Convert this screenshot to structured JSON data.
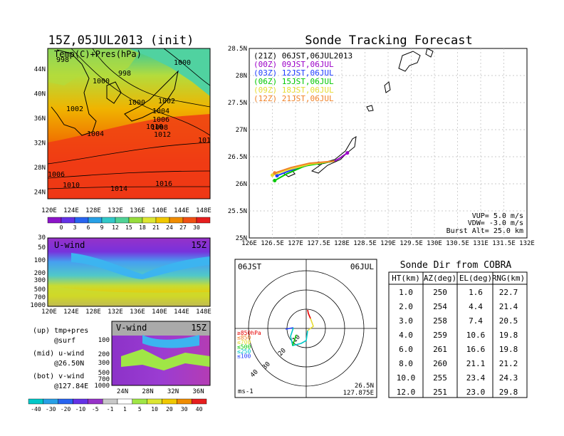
{
  "left_map": {
    "title": "15Z,05JUL2013 (init)",
    "label": "Temp(C)+Pres(hPa)",
    "lat_ticks": [
      "44N",
      "40N",
      "36N",
      "32N",
      "28N",
      "24N"
    ],
    "lon_ticks": [
      "120E",
      "124E",
      "128E",
      "132E",
      "136E",
      "140E",
      "144E",
      "148E"
    ],
    "isobars": [
      "998",
      "998",
      "1000",
      "1000",
      "1000",
      "1002",
      "1002",
      "1004",
      "1004",
      "1006",
      "1008",
      "1010",
      "1012",
      "101",
      "1006",
      "1010",
      "1014",
      "1016"
    ],
    "colorbar": [
      "0",
      "3",
      "6",
      "9",
      "12",
      "15",
      "18",
      "21",
      "24",
      "27",
      "30"
    ]
  },
  "uwind": {
    "label": "U-wind",
    "time": "15Z",
    "p_ticks": [
      "30",
      "50",
      "100",
      "200",
      "300",
      "500",
      "700",
      "1000"
    ],
    "lon_ticks": [
      "120E",
      "124E",
      "128E",
      "132E",
      "136E",
      "140E",
      "144E",
      "148E"
    ]
  },
  "vwind": {
    "label": "V-wind",
    "time": "15Z",
    "p_ticks": [
      "100",
      "200",
      "300",
      "500",
      "700",
      "1000"
    ],
    "lat_ticks": [
      "24N",
      "28N",
      "32N",
      "36N"
    ]
  },
  "legend_notes": {
    "up": "(up) tmp+pres",
    "up2": "@surf",
    "mid": "(mid) u-wind",
    "mid2": "@26.50N",
    "bot": "(bot) v-wind",
    "bot2": "@127.84E"
  },
  "wind_colorbar": [
    "-40",
    "-30",
    "-20",
    "-10",
    "-5",
    "-1",
    "1",
    "5",
    "10",
    "20",
    "30",
    "40"
  ],
  "track": {
    "title": "Sonde Tracking Forecast",
    "legend": [
      {
        "text": "(21Z) 06JST,06JUL2013",
        "color": "#000000"
      },
      {
        "text": "(00Z)  09JST,06JUL",
        "color": "#9b00c8"
      },
      {
        "text": "(03Z)  12JST,06JUL",
        "color": "#1e3cff"
      },
      {
        "text": "(06Z)  15JST,06JUL",
        "color": "#00c800"
      },
      {
        "text": "(09Z)  18JST,06JUL",
        "color": "#e6dc32"
      },
      {
        "text": "(12Z)  21JST,06JUL",
        "color": "#f08228"
      }
    ],
    "lat_ticks": [
      "28.5N",
      "28N",
      "27.5N",
      "27N",
      "26.5N",
      "26N",
      "25.5N",
      "25N"
    ],
    "lon_ticks": [
      "126E",
      "126.5E",
      "127E",
      "127.5E",
      "128E",
      "128.5E",
      "129E",
      "129.5E",
      "130E",
      "130.5E",
      "131E",
      "131.5E",
      "132E"
    ],
    "vup": "VUP=  5.0  m/s",
    "vdw": "VDW= -3.0  m/s",
    "burst": "Burst Alt=  25.0  km"
  },
  "polar": {
    "time": "06JST",
    "date": "06JUL",
    "ring_labels": [
      "10",
      "20",
      "30",
      "40"
    ],
    "levels": [
      {
        "text": "≥850hPa",
        "color": "#e60000"
      },
      {
        "text": "≤850",
        "color": "#f08228"
      },
      {
        "text": "≤700",
        "color": "#e6dc32"
      },
      {
        "text": "≤500",
        "color": "#00c800"
      },
      {
        "text": "≤250",
        "color": "#00c8c8"
      },
      {
        "text": "≤100",
        "color": "#1e3cff"
      }
    ],
    "unit": "ms-1",
    "lat": "26.5N",
    "lon": "127.875E"
  },
  "cobra": {
    "title": "Sonde Dir from COBRA",
    "headers": [
      "HT(km)",
      "AZ(deg)",
      "EL(deg)",
      "RNG(km)"
    ],
    "rows": [
      [
        "1.0",
        "250",
        "1.6",
        "22.7"
      ],
      [
        "2.0",
        "254",
        "4.4",
        "21.4"
      ],
      [
        "3.0",
        "258",
        "7.4",
        "20.5"
      ],
      [
        "4.0",
        "259",
        "10.6",
        "19.8"
      ],
      [
        "6.0",
        "261",
        "16.6",
        "19.8"
      ],
      [
        "8.0",
        "260",
        "21.1",
        "21.2"
      ],
      [
        "10.0",
        "255",
        "23.4",
        "24.3"
      ],
      [
        "12.0",
        "251",
        "23.0",
        "29.8"
      ]
    ]
  },
  "chart_data": [
    {
      "type": "heatmap",
      "title": "15Z,05JUL2013 (init)",
      "xlabel": "",
      "ylabel": "",
      "xlim": [
        120,
        150
      ],
      "ylim": [
        22,
        47
      ],
      "colorbar_levels": [
        0,
        3,
        6,
        9,
        12,
        15,
        18,
        21,
        24,
        27,
        30
      ]
    },
    {
      "type": "heatmap",
      "title": "U-wind",
      "xlim": [
        120,
        150
      ],
      "ylim": [
        1000,
        30
      ],
      "colorbar_levels": [
        -40,
        -30,
        -20,
        -10,
        -5,
        -1,
        1,
        5,
        10,
        20,
        30,
        40
      ]
    },
    {
      "type": "heatmap",
      "title": "V-wind",
      "xlim": [
        22,
        38
      ],
      "ylim": [
        1000,
        100
      ]
    },
    {
      "type": "line",
      "title": "Sonde Tracking Forecast",
      "xlim": [
        126,
        132
      ],
      "ylim": [
        25,
        28.5
      ],
      "series": [
        {
          "name": "(21Z) 06JST,06JUL2013",
          "x": [
            127.84,
            127.7,
            127.6,
            127.5
          ],
          "y": [
            26.42,
            26.4,
            26.38,
            26.38
          ]
        },
        {
          "name": "(00Z)  09JST,06JUL",
          "x": [
            127.84,
            127.95,
            128.05,
            128.12
          ],
          "y": [
            26.42,
            26.47,
            26.53,
            26.57
          ]
        },
        {
          "name": "(03Z)  12JST,06JUL",
          "x": [
            127.84,
            127.3,
            126.9,
            126.6
          ],
          "y": [
            26.42,
            26.35,
            26.25,
            26.15
          ]
        },
        {
          "name": "(06Z)  15JST,06JUL",
          "x": [
            127.84,
            127.2,
            126.8,
            126.55
          ],
          "y": [
            26.42,
            26.33,
            26.18,
            26.06
          ]
        },
        {
          "name": "(09Z)  18JST,06JUL",
          "x": [
            127.84,
            127.3,
            126.8,
            126.5
          ],
          "y": [
            26.42,
            26.36,
            26.25,
            26.16
          ]
        },
        {
          "name": "(12Z)  21JST,06JUL",
          "x": [
            127.84,
            127.3,
            126.9,
            126.55
          ],
          "y": [
            26.42,
            26.38,
            26.3,
            26.2
          ]
        }
      ]
    },
    {
      "type": "table",
      "title": "Sonde Dir from COBRA",
      "headers": [
        "HT(km)",
        "AZ(deg)",
        "EL(deg)",
        "RNG(km)"
      ]
    }
  ]
}
